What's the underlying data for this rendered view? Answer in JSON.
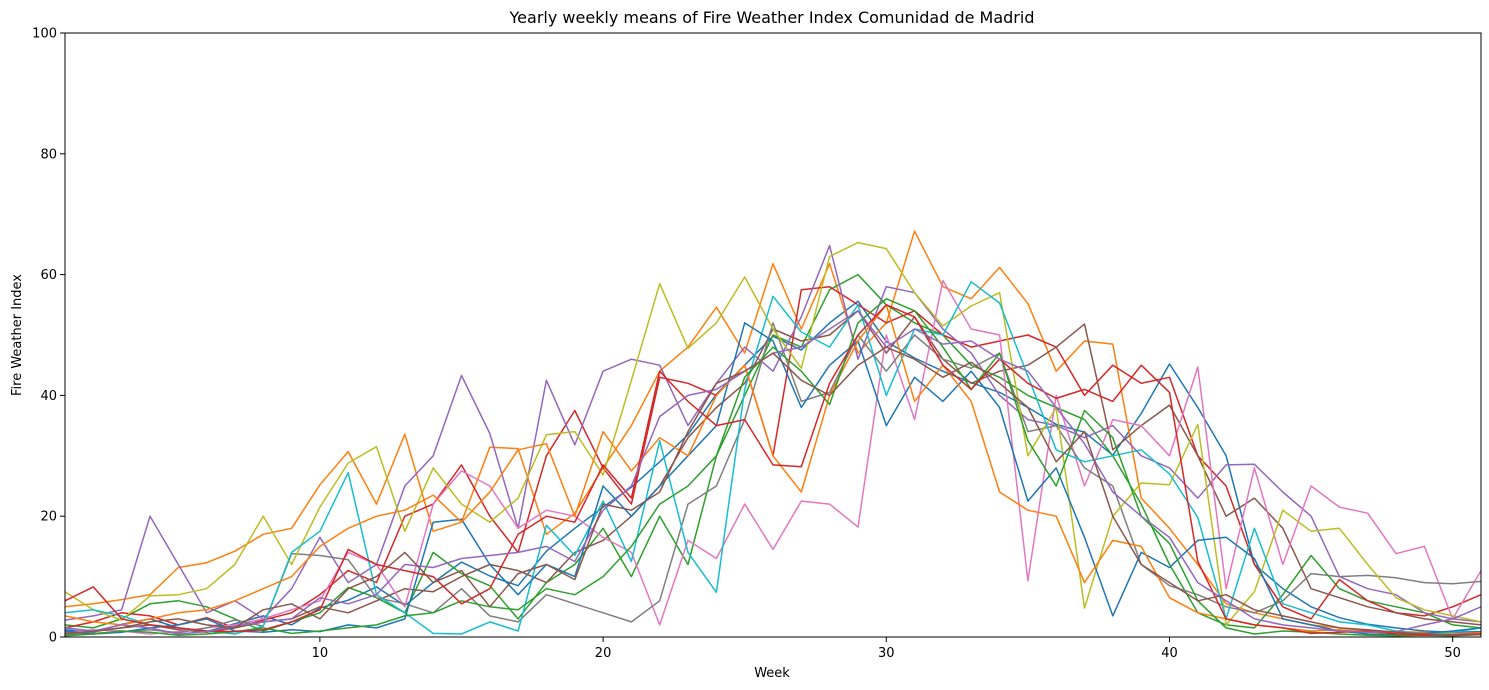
{
  "chart_data": {
    "type": "line",
    "title": "Yearly weekly means of Fire Weather Index Comunidad de Madrid",
    "xlabel": "Week",
    "ylabel": "Fire Weather Index",
    "xlim": [
      1,
      51
    ],
    "ylim": [
      0,
      100
    ],
    "xticks": [
      10,
      20,
      30,
      40,
      50
    ],
    "yticks": [
      0,
      20,
      40,
      60,
      80,
      100
    ],
    "grid": false,
    "legend": "none",
    "colors": [
      "#1f77b4",
      "#ff7f0e",
      "#2ca02c",
      "#d62728",
      "#9467bd",
      "#8c564b",
      "#e377c2",
      "#7f7f7f",
      "#bcbd22",
      "#17becf"
    ],
    "x": [
      1,
      2,
      3,
      4,
      5,
      6,
      7,
      8,
      9,
      10,
      11,
      12,
      13,
      14,
      15,
      16,
      17,
      18,
      19,
      20,
      21,
      22,
      23,
      24,
      25,
      26,
      27,
      28,
      29,
      30,
      31,
      32,
      33,
      34,
      35,
      36,
      37,
      38,
      39,
      40,
      41,
      42,
      43,
      44,
      45,
      46,
      47,
      48,
      49,
      50,
      51
    ],
    "series": [
      {
        "values": [
          1.2,
          0.8,
          2.1,
          3.0,
          1.5,
          0.9,
          2.2,
          3.5,
          2.0,
          4.8,
          6.1,
          8.3,
          5.2,
          9.0,
          12.4,
          10.1,
          8.5,
          14.2,
          18.0,
          21.5,
          24.8,
          29.0,
          33.5,
          40.2,
          45.0,
          49.8,
          47.5,
          52.0,
          55.6,
          48.9,
          46.2,
          44.0,
          42.1,
          40.5,
          38.0,
          35.2,
          33.9,
          30.1,
          37.0,
          45.2,
          38.0,
          30.0,
          12.0,
          8.0,
          5.0,
          3.2,
          2.1,
          1.5,
          1.0,
          0.8,
          0.9
        ]
      },
      {
        "values": [
          5.0,
          5.5,
          6.2,
          7.0,
          11.5,
          12.3,
          14.2,
          17.0,
          18.0,
          25.2,
          30.7,
          22.0,
          33.6,
          17.5,
          19.0,
          31.4,
          31.2,
          17.0,
          20.5,
          28.0,
          35.0,
          44.0,
          48.0,
          54.6,
          47.0,
          61.8,
          51.0,
          61.8,
          47.0,
          52.0,
          67.2,
          58.0,
          56.0,
          61.2,
          55.2,
          44.0,
          49.0,
          48.5,
          23.0,
          18.0,
          12.0,
          5.5,
          4.0,
          3.0,
          2.0,
          1.5,
          1.0,
          0.9,
          0.8,
          0.5,
          0.6
        ]
      },
      {
        "values": [
          2.0,
          1.5,
          3.0,
          5.5,
          6.0,
          5.0,
          3.0,
          1.0,
          2.5,
          4.0,
          8.2,
          6.5,
          4.0,
          14.0,
          10.5,
          8.5,
          3.0,
          9.0,
          12.0,
          18.0,
          10.0,
          20.0,
          12.0,
          30.0,
          40.0,
          50.0,
          48.0,
          57.5,
          60.0,
          55.0,
          52.0,
          50.0,
          45.0,
          43.0,
          40.0,
          38.0,
          36.0,
          30.0,
          22.0,
          12.0,
          4.0,
          2.0,
          1.5,
          7.0,
          13.5,
          8.0,
          6.0,
          5.0,
          4.0,
          2.0,
          1.5
        ]
      },
      {
        "values": [
          1.5,
          2.5,
          4.0,
          3.5,
          2.0,
          3.2,
          1.5,
          2.8,
          4.0,
          7.0,
          11.0,
          9.0,
          20.0,
          22.0,
          28.5,
          20.0,
          14.0,
          30.0,
          37.5,
          28.0,
          22.0,
          43.0,
          42.0,
          40.0,
          45.0,
          30.0,
          57.5,
          58.0,
          55.0,
          52.0,
          54.0,
          50.0,
          48.0,
          49.0,
          50.0,
          48.0,
          40.0,
          45.0,
          42.0,
          43.0,
          30.0,
          25.0,
          12.0,
          5.0,
          3.0,
          9.5,
          6.0,
          4.0,
          3.5,
          5.0,
          7.0
        ]
      },
      {
        "values": [
          2.8,
          3.5,
          4.5,
          20.0,
          12.0,
          4.0,
          6.0,
          3.0,
          8.0,
          16.5,
          9.0,
          12.0,
          25.0,
          30.0,
          43.3,
          33.7,
          18.0,
          42.5,
          31.8,
          44.0,
          46.0,
          45.0,
          35.0,
          42.0,
          48.0,
          44.0,
          53.0,
          64.8,
          46.0,
          58.0,
          57.0,
          51.0,
          47.0,
          40.0,
          36.0,
          35.0,
          33.0,
          35.0,
          30.0,
          28.0,
          23.0,
          28.5,
          28.6,
          24.0,
          20.0,
          10.0,
          8.0,
          7.0,
          4.0,
          3.0,
          2.5
        ]
      },
      {
        "values": [
          0.5,
          1.0,
          1.5,
          2.0,
          1.2,
          0.8,
          1.5,
          2.5,
          3.0,
          5.0,
          4.0,
          6.0,
          8.0,
          7.5,
          10.0,
          12.0,
          11.0,
          9.0,
          14.0,
          16.0,
          20.0,
          25.0,
          33.0,
          38.0,
          42.0,
          51.0,
          49.0,
          50.0,
          54.0,
          47.0,
          53.0,
          46.0,
          42.0,
          44.0,
          45.0,
          48.0,
          51.8,
          31.0,
          35.0,
          38.4,
          30.0,
          20.0,
          23.0,
          18.0,
          8.0,
          6.5,
          5.0,
          4.0,
          3.0,
          2.5,
          2.0
        ]
      },
      {
        "values": [
          0.8,
          1.2,
          1.0,
          0.5,
          0.9,
          1.5,
          2.0,
          3.0,
          4.5,
          6.0,
          14.0,
          12.0,
          5.0,
          22.0,
          27.5,
          25.0,
          18.0,
          21.0,
          20.0,
          16.5,
          14.0,
          2.0,
          16.0,
          13.0,
          22.0,
          14.5,
          22.5,
          22.0,
          18.2,
          50.0,
          36.0,
          59.0,
          51.0,
          50.0,
          9.3,
          40.0,
          25.0,
          36.0,
          35.0,
          30.0,
          44.7,
          8.0,
          28.0,
          12.0,
          25.0,
          21.5,
          20.5,
          13.8,
          15.0,
          3.0,
          11.0
        ]
      },
      {
        "values": [
          0.4,
          0.6,
          0.9,
          1.2,
          0.7,
          1.5,
          2.8,
          1.8,
          13.8,
          13.5,
          12.8,
          6.5,
          5.5,
          4.0,
          8.0,
          3.5,
          2.5,
          7.0,
          5.5,
          4.0,
          2.5,
          6.0,
          22.0,
          25.0,
          36.0,
          52.0,
          39.0,
          40.5,
          50.0,
          44.0,
          50.0,
          46.0,
          44.5,
          47.0,
          34.0,
          35.0,
          28.0,
          25.0,
          12.0,
          8.5,
          7.0,
          5.0,
          4.0,
          6.0,
          10.5,
          10.0,
          10.2,
          9.8,
          9.0,
          8.8,
          9.2
        ]
      },
      {
        "values": [
          7.5,
          4.5,
          2.8,
          6.8,
          7.0,
          8.0,
          12.0,
          20.0,
          12.0,
          21.5,
          28.8,
          31.5,
          17.5,
          28.0,
          22.0,
          19.0,
          23.0,
          33.5,
          34.0,
          26.8,
          42.5,
          58.5,
          47.8,
          52.0,
          59.6,
          51.0,
          44.5,
          63.0,
          65.3,
          64.3,
          57.0,
          51.5,
          54.8,
          57.0,
          30.0,
          38.0,
          4.8,
          20.0,
          25.5,
          25.2,
          35.2,
          2.0,
          7.5,
          21.0,
          17.5,
          18.0,
          12.0,
          6.5,
          4.5,
          3.5,
          2.5
        ]
      },
      {
        "values": [
          4.0,
          4.5,
          3.5,
          2.0,
          1.5,
          1.0,
          0.5,
          1.8,
          14.0,
          17.5,
          27.2,
          7.0,
          4.0,
          0.6,
          0.5,
          2.5,
          1.0,
          18.5,
          13.5,
          22.5,
          12.5,
          32.5,
          14.0,
          7.4,
          41.0,
          56.4,
          50.5,
          48.0,
          55.0,
          40.0,
          51.0,
          50.0,
          58.8,
          55.3,
          43.2,
          31.0,
          29.0,
          30.0,
          31.0,
          27.0,
          19.8,
          3.0,
          18.0,
          5.5,
          4.0,
          2.5,
          2.0,
          1.0,
          0.5,
          0.8,
          1.5
        ]
      },
      {
        "values": [
          1.0,
          0.5,
          0.8,
          1.5,
          2.0,
          3.0,
          1.0,
          0.8,
          1.2,
          0.9,
          2.0,
          1.5,
          3.0,
          19.0,
          19.5,
          12.0,
          7.0,
          12.0,
          10.0,
          25.0,
          20.0,
          25.0,
          30.0,
          35.0,
          52.0,
          49.0,
          38.0,
          45.0,
          49.0,
          35.0,
          43.0,
          39.0,
          44.0,
          38.0,
          22.5,
          28.0,
          16.5,
          3.5,
          14.0,
          11.5,
          16.0,
          16.5,
          13.0,
          3.0,
          2.0,
          1.0,
          0.5,
          0.4,
          0.6,
          1.0,
          1.5
        ]
      },
      {
        "values": [
          3.5,
          2.5,
          2.0,
          3.0,
          4.0,
          4.5,
          6.0,
          8.0,
          10.0,
          15.0,
          18.0,
          20.0,
          21.0,
          23.5,
          19.0,
          24.0,
          31.0,
          32.0,
          20.0,
          34.0,
          27.5,
          33.0,
          30.0,
          40.0,
          45.0,
          30.0,
          24.0,
          40.0,
          49.0,
          55.0,
          39.0,
          45.0,
          39.0,
          24.0,
          21.0,
          20.0,
          9.0,
          16.0,
          15.0,
          6.5,
          4.0,
          3.0,
          2.0,
          1.5,
          1.0,
          1.2,
          0.8,
          0.6,
          0.5,
          0.4,
          0.7
        ]
      },
      {
        "values": [
          0.2,
          0.5,
          1.0,
          0.8,
          0.3,
          0.5,
          0.9,
          1.5,
          0.6,
          1.0,
          1.5,
          2.0,
          3.5,
          4.0,
          6.0,
          5.0,
          4.5,
          8.0,
          7.0,
          10.0,
          15.0,
          22.0,
          25.0,
          30.0,
          43.0,
          48.0,
          44.0,
          38.5,
          52.0,
          56.0,
          54.0,
          48.0,
          41.0,
          47.0,
          32.5,
          25.0,
          37.5,
          33.0,
          20.0,
          15.5,
          6.0,
          1.5,
          0.5,
          1.0,
          0.8,
          0.5,
          0.3,
          0.2,
          0.3,
          0.2,
          0.4
        ]
      },
      {
        "values": [
          6.0,
          8.3,
          3.0,
          2.0,
          1.5,
          1.0,
          0.9,
          1.2,
          2.5,
          4.5,
          14.5,
          12.0,
          11.0,
          10.0,
          5.5,
          8.0,
          17.0,
          20.0,
          19.0,
          28.5,
          23.0,
          44.0,
          39.0,
          35.0,
          36.0,
          28.5,
          28.2,
          42.0,
          50.0,
          55.0,
          53.0,
          45.0,
          41.0,
          46.0,
          42.0,
          39.5,
          41.0,
          39.0,
          45.0,
          40.5,
          12.5,
          3.0,
          2.0,
          1.5,
          0.6,
          0.8,
          1.0,
          0.5,
          0.3,
          0.4,
          0.5
        ]
      },
      {
        "values": [
          1.5,
          1.0,
          2.0,
          1.5,
          0.5,
          0.9,
          1.8,
          2.5,
          3.0,
          6.5,
          5.5,
          7.0,
          12.0,
          11.5,
          13.0,
          13.5,
          14.0,
          15.0,
          12.5,
          21.0,
          25.0,
          36.5,
          40.0,
          41.0,
          44.0,
          47.0,
          48.0,
          51.0,
          54.0,
          48.0,
          51.0,
          48.5,
          49.0,
          46.0,
          44.0,
          38.0,
          32.0,
          24.0,
          20.0,
          16.5,
          9.0,
          6.0,
          3.0,
          2.0,
          1.5,
          1.0,
          0.8,
          0.9,
          2.0,
          3.0,
          5.0
        ]
      },
      {
        "values": [
          0.6,
          0.9,
          1.5,
          2.5,
          3.0,
          2.0,
          1.5,
          4.5,
          5.5,
          3.0,
          8.0,
          10.0,
          14.0,
          9.0,
          11.0,
          5.0,
          10.5,
          12.0,
          9.5,
          22.0,
          21.0,
          24.0,
          34.0,
          42.0,
          44.0,
          47.0,
          42.5,
          40.0,
          45.0,
          48.0,
          46.0,
          43.0,
          45.5,
          42.0,
          38.0,
          29.0,
          34.0,
          20.0,
          12.0,
          9.0,
          6.0,
          7.0,
          4.5,
          3.5,
          2.5,
          1.5,
          1.2,
          0.8,
          0.5,
          0.3,
          0.4
        ]
      }
    ]
  }
}
